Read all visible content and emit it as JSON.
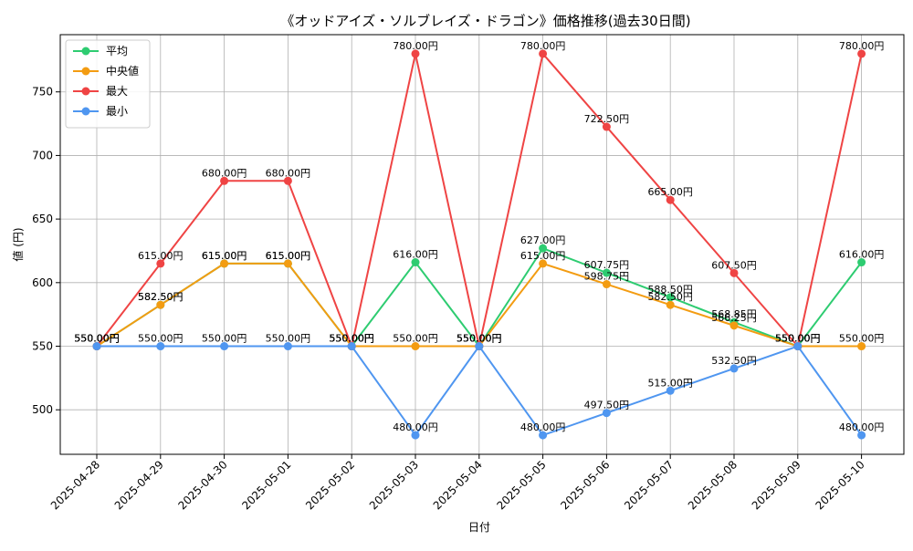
{
  "chart_data": {
    "type": "line",
    "title": "《オッドアイズ・ソルブレイズ・ドラゴン》価格推移(過去30日間)",
    "xlabel": "日付",
    "ylabel": "値 (円)",
    "ylim": [
      465,
      795
    ],
    "yticks": [
      500,
      550,
      600,
      650,
      700,
      750
    ],
    "grid": true,
    "legend_position": "top-left",
    "categories": [
      "2025-04-28",
      "2025-04-29",
      "2025-04-30",
      "2025-05-01",
      "2025-05-02",
      "2025-05-03",
      "2025-05-04",
      "2025-05-05",
      "2025-05-06",
      "2025-05-07",
      "2025-05-08",
      "2025-05-09",
      "2025-05-10"
    ],
    "series": [
      {
        "name": "平均",
        "color": "#2ecc71",
        "values": [
          550,
          582.5,
          615,
          615,
          550,
          616,
          550,
          627,
          607.75,
          588.5,
          568.85,
          550,
          616
        ],
        "labels": [
          "550.00円",
          "582.50円",
          "615.00円",
          "615.00円",
          "550.00円",
          "616.00円",
          "550.00円",
          "627.00円",
          "607.75円",
          "588.50円",
          "568.85円",
          "550.00円",
          "616.00円"
        ]
      },
      {
        "name": "中央値",
        "color": "#f39c12",
        "values": [
          550,
          582.5,
          615,
          615,
          550,
          550,
          550,
          615,
          598.75,
          582.5,
          566.25,
          550,
          550
        ],
        "labels": [
          "550.00円",
          "582.50円",
          "615.00円",
          "615.00円",
          "550.00円",
          "550.00円",
          "550.00円",
          "615.00円",
          "598.75円",
          "582.50円",
          "566.25円",
          "550.00円",
          "550.00円"
        ]
      },
      {
        "name": "最大",
        "color": "#ef4444",
        "values": [
          550,
          615,
          680,
          680,
          550,
          780,
          550,
          780,
          722.5,
          665,
          607.5,
          550,
          780
        ],
        "labels": [
          "550.00円",
          "615.00円",
          "680.00円",
          "680.00円",
          "550.00円",
          "780.00円",
          "550.00円",
          "780.00円",
          "722.50円",
          "665.00円",
          "607.50円",
          "550.00円",
          "780.00円"
        ]
      },
      {
        "name": "最小",
        "color": "#4f96f0",
        "values": [
          550,
          550,
          550,
          550,
          550,
          480,
          550,
          480,
          497.5,
          515,
          532.5,
          550,
          480
        ],
        "labels": [
          "550.00円",
          "550.00円",
          "550.00円",
          "550.00円",
          "550.00円",
          "480.00円",
          "550.00円",
          "480.00円",
          "497.50円",
          "515.00円",
          "532.50円",
          "550.00円",
          "480.00円"
        ]
      }
    ]
  }
}
